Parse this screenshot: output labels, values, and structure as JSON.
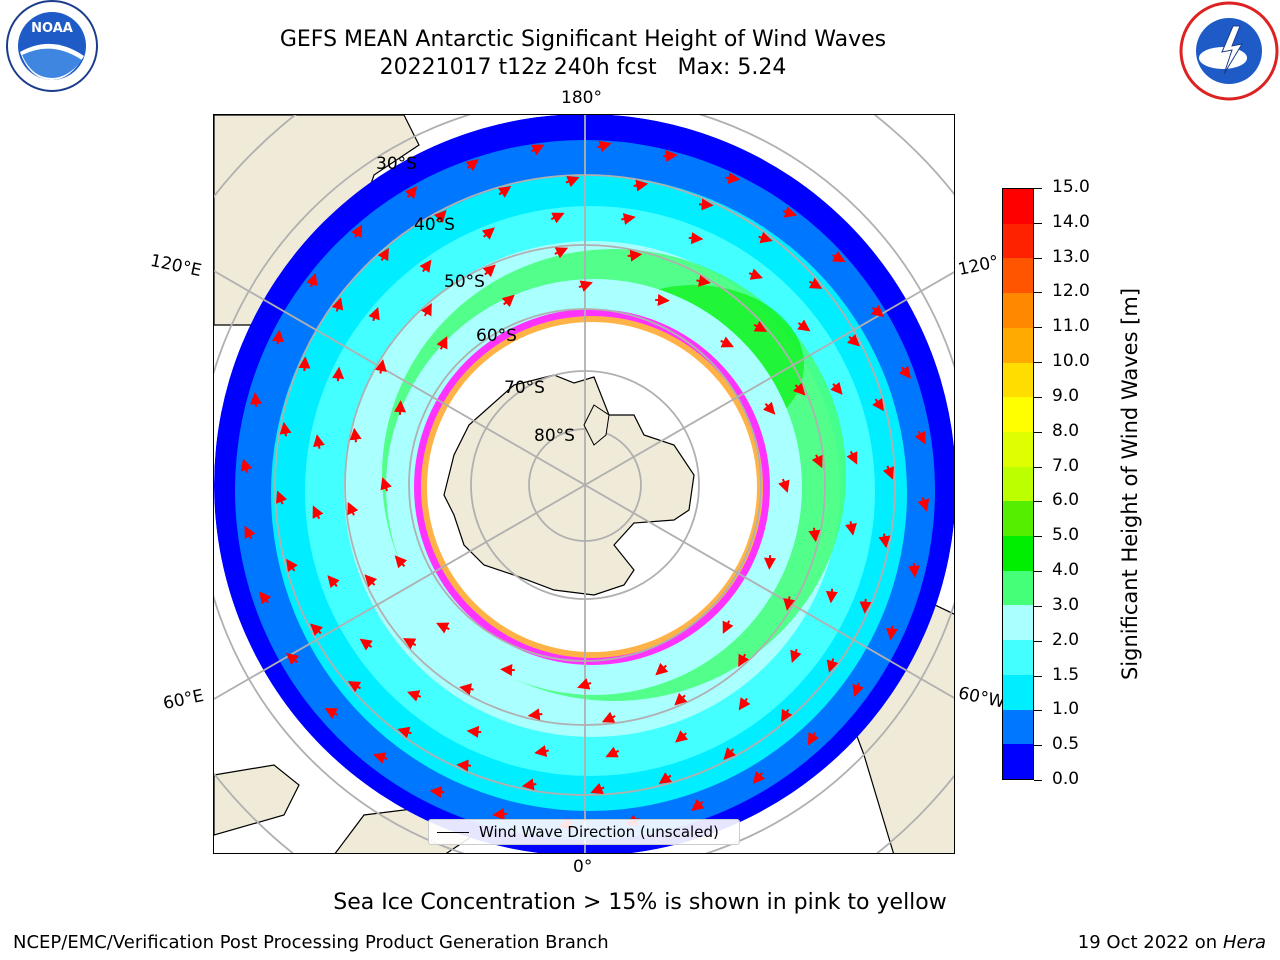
{
  "title": {
    "line1": "GEFS MEAN Antarctic Significant Height of Wind Waves",
    "line2": "20221017 t12z 240h fcst   Max: 5.24"
  },
  "map": {
    "projection": "south-polar-stereographic",
    "lon_labels": {
      "top": "180°",
      "bottom": "0°",
      "left_upper": "120°E",
      "left_lower": "60°E",
      "right_upper": "120°",
      "right_lower": "60°W"
    },
    "lat_labels": [
      "30°S",
      "40°S",
      "50°S",
      "60°S",
      "70°S",
      "80°S"
    ],
    "legend_label": "Wind Wave Direction (unscaled)",
    "arrow_color": "#ff0000",
    "land_color": "#efebd8",
    "ice_colors": [
      "#ff33ff",
      "#ffb347",
      "#ffdd55"
    ]
  },
  "colorbar": {
    "label": "Significant Height of Wind Waves [m]",
    "ticks": [
      "0.0",
      "0.5",
      "1.0",
      "1.5",
      "2.0",
      "3.0",
      "4.0",
      "5.0",
      "6.0",
      "7.0",
      "8.0",
      "9.0",
      "10.0",
      "11.0",
      "12.0",
      "13.0",
      "14.0",
      "15.0"
    ],
    "colors": [
      "#0000ff",
      "#0077ff",
      "#00eeff",
      "#44ffff",
      "#aaffff",
      "#44ff77",
      "#00ee00",
      "#55ee00",
      "#bbff00",
      "#ddff00",
      "#ffff00",
      "#ffdd00",
      "#ffaa00",
      "#ff8800",
      "#ff5500",
      "#ff2200",
      "#ff0000"
    ]
  },
  "notes": {
    "ice": "Sea Ice Concentration > 15% is shown in pink to yellow",
    "credit_left": "NCEP/EMC/Verification Post Processing Product Generation Branch",
    "credit_right_date": "19 Oct 2022 on ",
    "credit_right_host": "Hera"
  },
  "logos": {
    "left": "noaa-logo",
    "right": "national-weather-service-logo"
  }
}
